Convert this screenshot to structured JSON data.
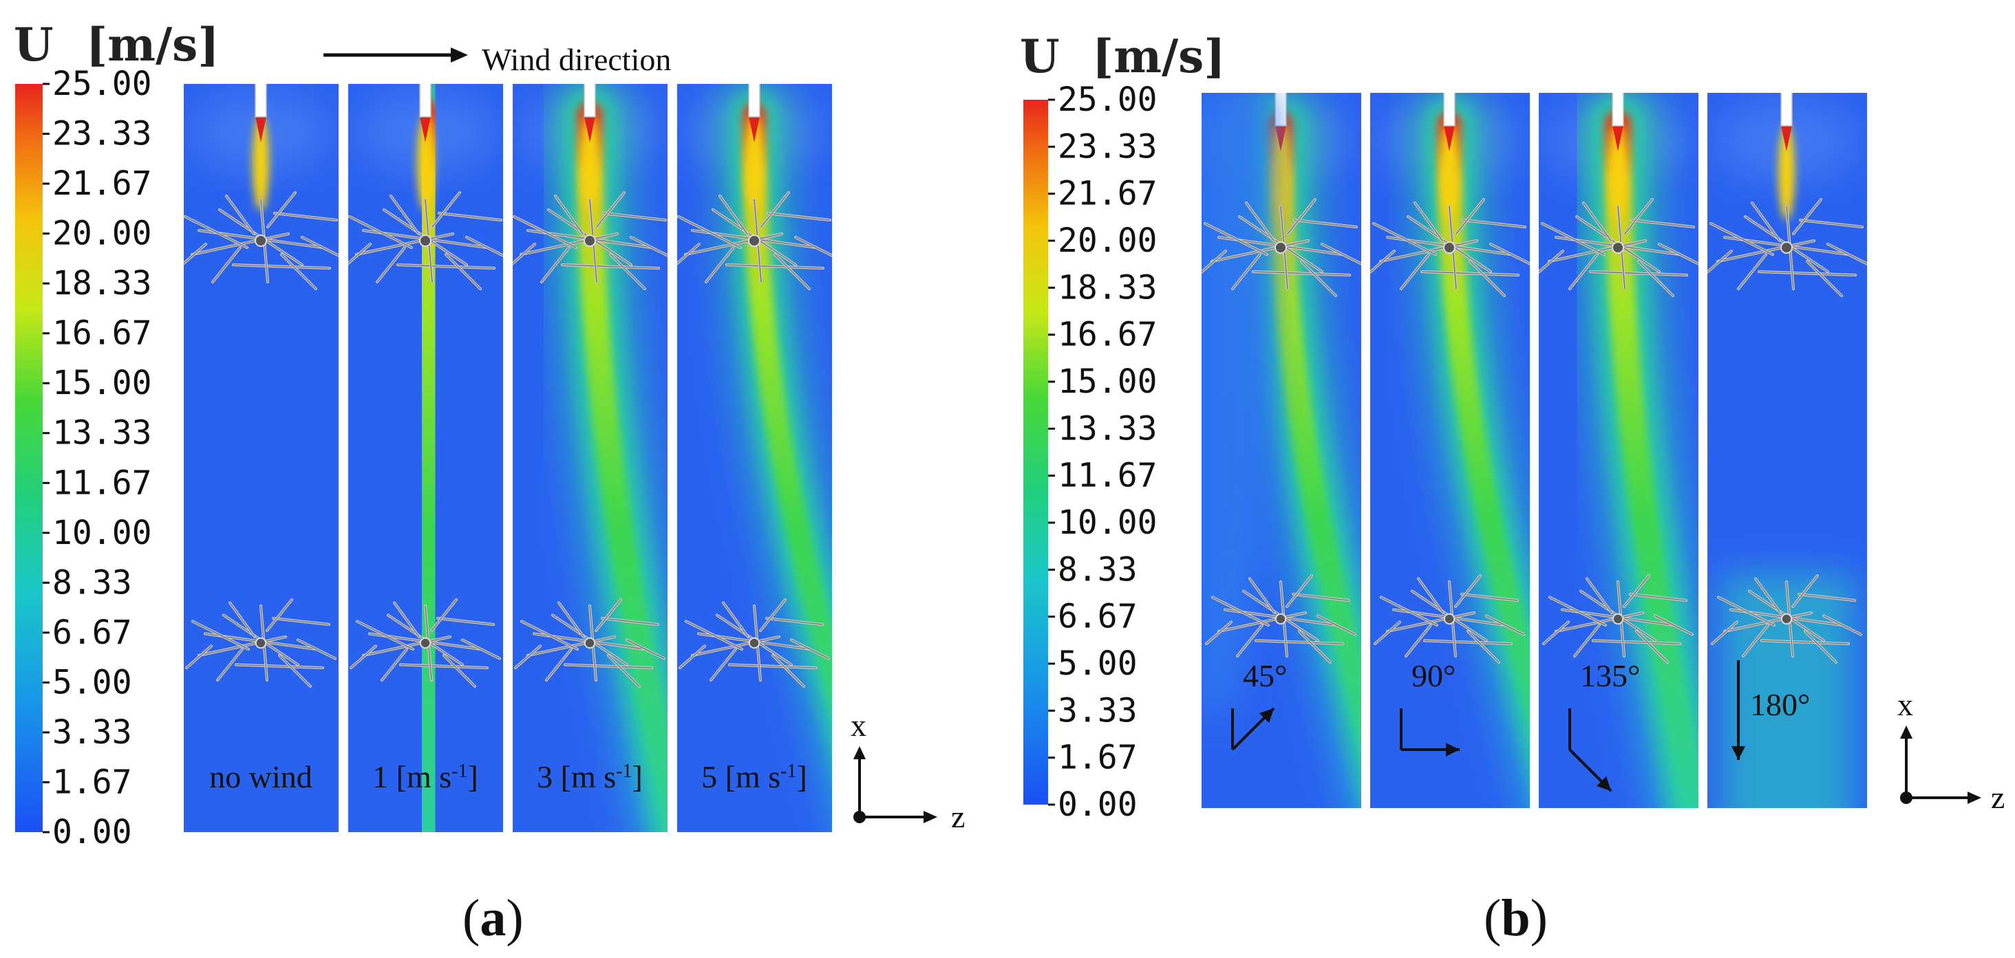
{
  "colorbar": {
    "unit_symbol": "U",
    "unit_label": "[m/s]",
    "ticks": [
      "25.00",
      "23.33",
      "21.67",
      "20.00",
      "18.33",
      "16.67",
      "15.00",
      "13.33",
      "11.67",
      "10.00",
      "8.33",
      "6.67",
      "5.00",
      "3.33",
      "1.67",
      "0.00"
    ],
    "colors": [
      "#e8251c",
      "#ef4a14",
      "#f5760f",
      "#f5a70c",
      "#f1d40a",
      "#d7ea12",
      "#a4e81c",
      "#64de2a",
      "#35d23c",
      "#22cf6a",
      "#1ecc9a",
      "#1ac6c9",
      "#17b0e2",
      "#1894ea",
      "#1a76ef",
      "#1b57f4"
    ]
  },
  "panel_a": {
    "wind_direction_label": "Wind direction",
    "cases": [
      {
        "label": "no wind",
        "bend": 0
      },
      {
        "label": "1 [m s",
        "sup": "-1",
        "close": "]",
        "bend": 0.05
      },
      {
        "label": "3 [m s",
        "sup": "-1",
        "close": "]",
        "bend": 0.7
      },
      {
        "label": "5 [m s",
        "sup": "-1",
        "close": "]",
        "bend": 1.0
      }
    ],
    "axis_x": "x",
    "axis_z": "z",
    "caption_open": "(",
    "caption_letter": "a",
    "caption_close": ")"
  },
  "panel_b": {
    "cases": [
      {
        "label": "45°",
        "angle": 45,
        "bend": 0.85
      },
      {
        "label": "90°",
        "angle": 90,
        "bend": 0.9
      },
      {
        "label": "135°",
        "angle": 135,
        "bend": 0.6
      },
      {
        "label": "180°",
        "angle": 180,
        "bend": 0
      }
    ],
    "axis_x": "x",
    "axis_z": "z",
    "caption_open": "(",
    "caption_letter": "b",
    "caption_close": ")"
  },
  "colors": {
    "background_field": "#2a62f0",
    "jet_core": "#f2d10d",
    "jet_mid": "#3fd84a",
    "jet_outer": "#20cfb0",
    "nozzle": "#e0201a"
  }
}
